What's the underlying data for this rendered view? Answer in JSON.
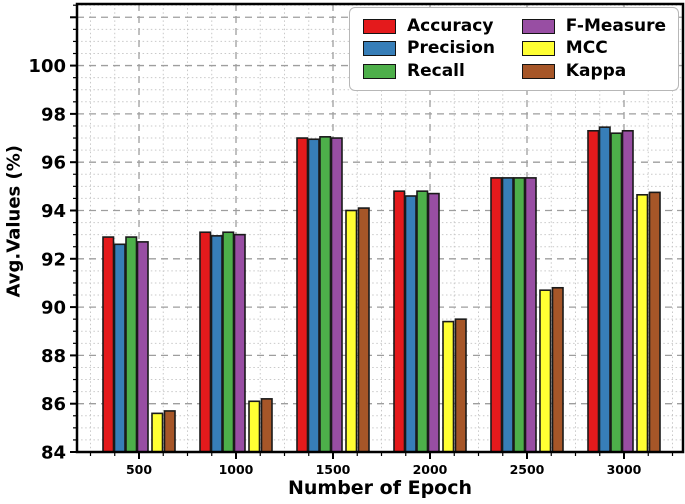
{
  "chart_data": {
    "type": "bar",
    "title": "",
    "xlabel": "Number of Epoch",
    "ylabel": "Avg.Values (%)",
    "categories": [
      "500",
      "1000",
      "1500",
      "2000",
      "2500",
      "3000"
    ],
    "series": [
      {
        "name": "Accuracy",
        "color": "#e41a1c",
        "values": [
          92.9,
          93.1,
          97.0,
          94.8,
          95.35,
          97.3
        ]
      },
      {
        "name": "Precision",
        "color": "#377eb8",
        "values": [
          92.6,
          92.95,
          96.95,
          94.6,
          95.35,
          97.45
        ]
      },
      {
        "name": "Recall",
        "color": "#4daf4a",
        "values": [
          92.9,
          93.1,
          97.05,
          94.8,
          95.35,
          97.2
        ]
      },
      {
        "name": "F-Measure",
        "color": "#984ea3",
        "values": [
          92.7,
          93.0,
          97.0,
          94.7,
          95.35,
          97.3
        ]
      },
      {
        "name": "MCC",
        "color": "#ffff33",
        "values": [
          85.6,
          86.1,
          94.0,
          89.4,
          90.7,
          94.65
        ]
      },
      {
        "name": "Kappa",
        "color": "#a65628",
        "values": [
          85.7,
          86.2,
          94.1,
          89.5,
          90.8,
          94.75
        ]
      }
    ],
    "ylim": [
      84,
      102.55
    ],
    "yticks": [
      "84",
      "86",
      "88",
      "90",
      "92",
      "94",
      "96",
      "98",
      "100"
    ],
    "grid": "major dashed + minor dotted",
    "legend_position": "upper right",
    "bar_edge_color": "#1a1a1a"
  }
}
